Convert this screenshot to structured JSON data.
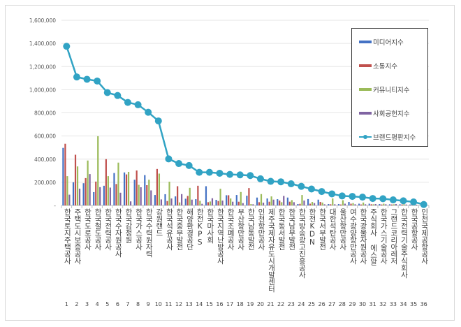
{
  "chart_data": {
    "type": "bar",
    "title": "",
    "xlabel": "",
    "ylabel": "",
    "ylim": [
      0,
      1600000
    ],
    "yticks": [
      "-",
      "200,000",
      "400,000",
      "600,000",
      "800,000",
      "1,000,000",
      "1,200,000",
      "1,400,000",
      "1,600,000"
    ],
    "grid": true,
    "legend_position": "top-right",
    "numbers": [
      "1",
      "2",
      "3",
      "4",
      "5",
      "6",
      "7",
      "8",
      "9",
      "10",
      "11",
      "12",
      "13",
      "14",
      "15",
      "16",
      "17",
      "18",
      "19",
      "20",
      "21",
      "22",
      "23",
      "24",
      "25",
      "26",
      "27",
      "28",
      "29",
      "30",
      "31",
      "32",
      "33",
      "34",
      "35",
      "36"
    ],
    "categories": [
      "한국토지주택공사",
      "주택도시보증공사",
      "한국도로공사",
      "한국철도공사",
      "한국전력공사",
      "한국수자원공사",
      "한국감정원",
      "한국가스공사",
      "한국수력원자력",
      "강원랜드",
      "한국석유공사",
      "한국중부발전",
      "해양환경공단",
      "한전KPS",
      "한국마사회",
      "한국지역난방공사",
      "한국조폐공사",
      "부산항만공사",
      "한국남동발전",
      "인천항만공사",
      "제주국제자유도시개발센터",
      "한국동서발전",
      "한국남부발전",
      "한국방송광고진흥공사",
      "한전KDN",
      "한국서부발전",
      "대한석탄공사",
      "울산항만공사",
      "여수광양항만공사",
      "한국광물자원공사",
      "주식회사 에스알",
      "한국가스기술공사",
      "그랜드코리아레저",
      "한국전력기술주식회사",
      "한국공항공사",
      "인천국제공항공사"
    ],
    "series": [
      {
        "name": "미디어지수",
        "kind": "bar",
        "color": "#4472c4",
        "values": [
          497000,
          200000,
          192000,
          115000,
          170000,
          280000,
          285000,
          222000,
          262000,
          90000,
          97000,
          78000,
          58000,
          54000,
          166000,
          48000,
          88000,
          90000,
          84000,
          68000,
          60000,
          54000,
          68000,
          12000,
          55000,
          50000,
          12000,
          12000,
          30000,
          15000,
          15000,
          12000,
          10000,
          10000,
          8000,
          2000
        ]
      },
      {
        "name": "소통지수",
        "kind": "bar",
        "color": "#c0504d",
        "values": [
          533000,
          438000,
          236000,
          206000,
          400000,
          185000,
          268000,
          302000,
          175000,
          315000,
          38000,
          166000,
          82000,
          170000,
          28000,
          38000,
          88000,
          32000,
          150000,
          28000,
          32000,
          42000,
          32000,
          14000,
          15000,
          30000,
          10000,
          8000,
          15000,
          8000,
          10000,
          8000,
          8000,
          8000,
          5000,
          1000
        ]
      },
      {
        "name": "커뮤니티지수",
        "kind": "bar",
        "color": "#9bbb59",
        "values": [
          253000,
          337000,
          388000,
          598000,
          253000,
          370000,
          290000,
          178000,
          222000,
          275000,
          205000,
          26000,
          152000,
          40000,
          34000,
          144000,
          60000,
          116000,
          12000,
          98000,
          78000,
          28000,
          46000,
          90000,
          30000,
          25000,
          60000,
          45000,
          20000,
          25000,
          10000,
          15000,
          10000,
          10000,
          12000,
          2000
        ]
      },
      {
        "name": "사회공헌지수",
        "kind": "bar",
        "color": "#8064a2",
        "values": [
          93000,
          145000,
          271000,
          158000,
          154000,
          110000,
          35000,
          157000,
          130000,
          52000,
          60000,
          98000,
          50000,
          14000,
          62000,
          42000,
          32000,
          20000,
          10000,
          24000,
          50000,
          82000,
          28000,
          42000,
          20000,
          10000,
          10000,
          15000,
          10000,
          10000,
          12000,
          10000,
          12000,
          8000,
          6000,
          1000
        ]
      },
      {
        "name": "브랜드평판지수",
        "kind": "line",
        "color": "#31a3c4",
        "values": [
          1375000,
          1110000,
          1090000,
          1075000,
          975000,
          950000,
          890000,
          870000,
          805000,
          730000,
          402000,
          362000,
          345000,
          286000,
          286000,
          278000,
          268000,
          264000,
          258000,
          230000,
          208000,
          204000,
          187000,
          165000,
          142000,
          120000,
          100000,
          82000,
          78000,
          72000,
          60000,
          58000,
          48000,
          40000,
          30000,
          8000
        ]
      }
    ]
  }
}
